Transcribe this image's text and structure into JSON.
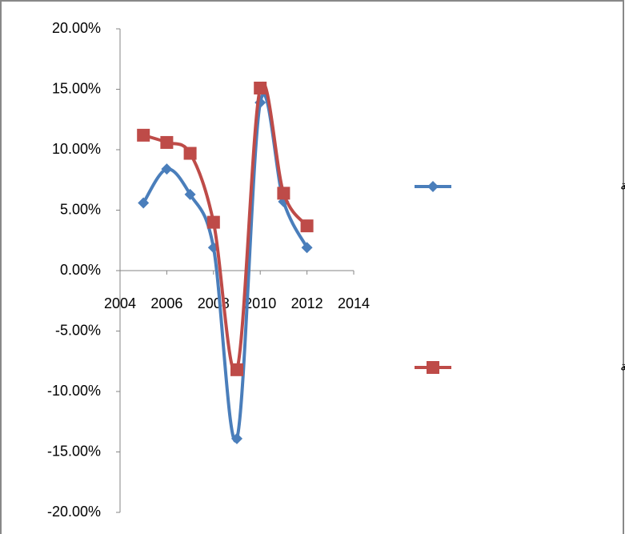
{
  "chart_data": {
    "type": "scatter-smooth",
    "x": [
      2005,
      2006,
      2007,
      2008,
      2009,
      2010,
      2011,
      2012
    ],
    "series": [
      {
        "name": "صادرات الدول المتقدمة",
        "color": "#4a7ebb",
        "marker": "diamond",
        "values": [
          5.6,
          8.4,
          6.3,
          1.9,
          -13.9,
          13.9,
          5.7,
          1.9
        ]
      },
      {
        "name": "صادرات الدول النامية",
        "color": "#be4b48",
        "marker": "square",
        "values": [
          11.2,
          10.6,
          9.7,
          4.0,
          -8.2,
          15.1,
          6.4,
          3.7
        ]
      }
    ],
    "xlim": [
      2004,
      2014
    ],
    "xticks": [
      2004,
      2006,
      2008,
      2010,
      2012,
      2014
    ],
    "ylim": [
      -20,
      20
    ],
    "yticks": [
      {
        "value": -20,
        "label": "-20.00%"
      },
      {
        "value": -15,
        "label": "-15.00%"
      },
      {
        "value": -10,
        "label": "-10.00%"
      },
      {
        "value": -5,
        "label": "-5.00%"
      },
      {
        "value": 0,
        "label": "0.00%"
      },
      {
        "value": 5,
        "label": "5.00%"
      },
      {
        "value": 10,
        "label": "10.00%"
      },
      {
        "value": 15,
        "label": "15.00%"
      },
      {
        "value": 20,
        "label": "20.00%"
      }
    ],
    "legend": "right"
  }
}
